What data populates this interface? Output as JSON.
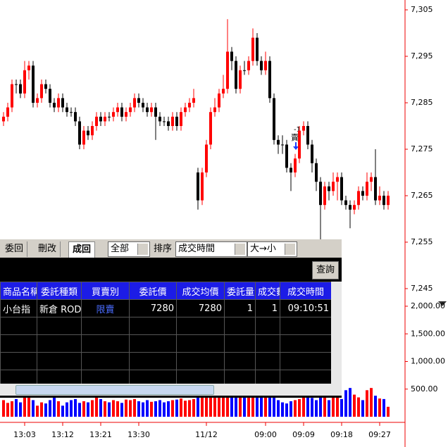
{
  "chart_data": {
    "type": "candlestick",
    "categories": [
      null,
      null,
      null,
      null,
      null,
      "13:03",
      null,
      null,
      null,
      null,
      null,
      null,
      null,
      null,
      "13:12",
      null,
      null,
      null,
      null,
      null,
      null,
      null,
      null,
      "13:21",
      null,
      null,
      null,
      null,
      null,
      null,
      null,
      null,
      "13:30",
      null,
      null,
      null,
      null,
      null,
      null,
      null,
      null,
      null,
      null,
      null,
      null,
      null,
      null,
      null,
      "11/12",
      null,
      null,
      null,
      null,
      null,
      null,
      null,
      null,
      null,
      null,
      null,
      null,
      null,
      "09:00",
      null,
      null,
      null,
      null,
      null,
      null,
      null,
      null,
      "09:09",
      null,
      null,
      null,
      null,
      null,
      null,
      null,
      null,
      "09:18",
      null,
      null,
      null,
      null,
      null,
      null,
      null,
      null,
      "09:27",
      null,
      null
    ],
    "ohlc": [
      [
        7281,
        7283,
        7280,
        7282
      ],
      [
        7282,
        7285,
        7281,
        7284
      ],
      [
        7284,
        7290,
        7283,
        7289
      ],
      [
        7289,
        7290,
        7287,
        7289
      ],
      [
        7289,
        7290,
        7286,
        7287
      ],
      [
        7287,
        7294,
        7286,
        7292
      ],
      [
        7292,
        7294,
        7290,
        7293
      ],
      [
        7293,
        7294,
        7284,
        7285
      ],
      [
        7285,
        7287,
        7284,
        7286
      ],
      [
        7286,
        7290,
        7285,
        7289
      ],
      [
        7289,
        7290,
        7287,
        7288
      ],
      [
        7288,
        7289,
        7284,
        7285
      ],
      [
        7285,
        7286,
        7283,
        7284
      ],
      [
        7284,
        7287,
        7283,
        7286
      ],
      [
        7286,
        7287,
        7283,
        7284
      ],
      [
        7284,
        7285,
        7282,
        7283
      ],
      [
        7283,
        7284,
        7282,
        7283
      ],
      [
        7283,
        7284,
        7280,
        7281
      ],
      [
        7281,
        7282,
        7275,
        7276
      ],
      [
        7276,
        7280,
        7275,
        7279
      ],
      [
        7279,
        7280,
        7277,
        7278
      ],
      [
        7278,
        7281,
        7277,
        7280
      ],
      [
        7280,
        7283,
        7279,
        7282
      ],
      [
        7282,
        7283,
        7280,
        7281
      ],
      [
        7281,
        7283,
        7280,
        7282
      ],
      [
        7282,
        7283,
        7281,
        7282
      ],
      [
        7282,
        7284,
        7281,
        7283
      ],
      [
        7283,
        7285,
        7282,
        7284
      ],
      [
        7284,
        7285,
        7281,
        7282
      ],
      [
        7282,
        7284,
        7281,
        7283
      ],
      [
        7283,
        7285,
        7282,
        7284
      ],
      [
        7284,
        7287,
        7283,
        7286
      ],
      [
        7286,
        7287,
        7284,
        7285
      ],
      [
        7285,
        7286,
        7283,
        7284
      ],
      [
        7284,
        7285,
        7282,
        7283
      ],
      [
        7283,
        7285,
        7282,
        7284
      ],
      [
        7284,
        7285,
        7277,
        7282
      ],
      [
        7282,
        7283,
        7280,
        7281
      ],
      [
        7281,
        7282,
        7280,
        7281
      ],
      [
        7281,
        7282,
        7279,
        7280
      ],
      [
        7280,
        7283,
        7279,
        7282
      ],
      [
        7282,
        7283,
        7279,
        7280
      ],
      [
        7280,
        7284,
        7279,
        7283
      ],
      [
        7283,
        7285,
        7282,
        7284
      ],
      [
        7284,
        7286,
        7283,
        7285
      ],
      [
        7285,
        7288,
        7284,
        7286
      ],
      [
        7270,
        7271,
        7262,
        7264
      ],
      [
        7264,
        7271,
        7263,
        7270
      ],
      [
        7270,
        7277,
        7269,
        7276
      ],
      [
        7276,
        7284,
        7275,
        7283
      ],
      [
        7283,
        7286,
        7282,
        7284
      ],
      [
        7284,
        7288,
        7283,
        7287
      ],
      [
        7287,
        7291,
        7286,
        7288
      ],
      [
        7288,
        7303,
        7287,
        7296
      ],
      [
        7296,
        7297,
        7292,
        7294
      ],
      [
        7294,
        7295,
        7287,
        7288
      ],
      [
        7288,
        7293,
        7287,
        7292
      ],
      [
        7292,
        7294,
        7291,
        7292
      ],
      [
        7292,
        7295,
        7291,
        7294
      ],
      [
        7294,
        7301,
        7293,
        7299
      ],
      [
        7299,
        7300,
        7293,
        7294
      ],
      [
        7294,
        7295,
        7291,
        7292
      ],
      [
        7292,
        7296,
        7291,
        7294
      ],
      [
        7294,
        7295,
        7285,
        7286
      ],
      [
        7286,
        7287,
        7276,
        7277
      ],
      [
        7277,
        7278,
        7274,
        7276
      ],
      [
        7276,
        7278,
        7274,
        7276
      ],
      [
        7276,
        7277,
        7270,
        7271
      ],
      [
        7271,
        7272,
        7266,
        7270
      ],
      [
        7270,
        7274,
        7269,
        7273
      ],
      [
        7273,
        7280,
        7272,
        7279
      ],
      [
        7279,
        7281,
        7278,
        7280
      ],
      [
        7280,
        7281,
        7275,
        7276
      ],
      [
        7276,
        7277,
        7270,
        7272
      ],
      [
        7272,
        7273,
        7266,
        7268
      ],
      [
        7268,
        7269,
        7255,
        7263
      ],
      [
        7263,
        7268,
        7262,
        7267
      ],
      [
        7267,
        7268,
        7264,
        7266
      ],
      [
        7266,
        7270,
        7265,
        7268
      ],
      [
        7268,
        7270,
        7264,
        7269
      ],
      [
        7269,
        7270,
        7263,
        7264
      ],
      [
        7264,
        7265,
        7262,
        7263
      ],
      [
        7263,
        7264,
        7258,
        7262
      ],
      [
        7262,
        7264,
        7261,
        7263
      ],
      [
        7263,
        7267,
        7262,
        7266
      ],
      [
        7266,
        7267,
        7264,
        7265
      ],
      [
        7265,
        7270,
        7264,
        7268
      ],
      [
        7268,
        7270,
        7266,
        7269
      ],
      [
        7269,
        7275,
        7263,
        7264
      ],
      [
        7264,
        7267,
        7263,
        7265
      ],
      [
        7265,
        7266,
        7262,
        7263
      ],
      [
        7263,
        7266,
        7262,
        7265
      ]
    ],
    "volumes": [
      300,
      250,
      280,
      320,
      260,
      350,
      380,
      300,
      200,
      260,
      240,
      300,
      350,
      280,
      200,
      260,
      300,
      320,
      250,
      280,
      260,
      300,
      350,
      320,
      280,
      260,
      300,
      280,
      250,
      310,
      300,
      320,
      280,
      260,
      300,
      270,
      280,
      300,
      260,
      280,
      300,
      310,
      330,
      290,
      300,
      320,
      500,
      400,
      380,
      420,
      450,
      500,
      480,
      460,
      440,
      420,
      400,
      380,
      450,
      480,
      460,
      420,
      350,
      400,
      380,
      300,
      260,
      240,
      280,
      300,
      320,
      350,
      420,
      340,
      300,
      400,
      380,
      300,
      360,
      350,
      320,
      480,
      520,
      400,
      350,
      300,
      480,
      520,
      380,
      330,
      320,
      180
    ],
    "up_color": "#ff0000",
    "down_color": "#000000",
    "volume_up_color": "#ff0000",
    "volume_down_color": "#0000ff",
    "ylim": [
      7245,
      7305
    ],
    "yticks": [
      {
        "value": 7245,
        "label": "7,245"
      },
      {
        "value": 7255,
        "label": "7,255"
      },
      {
        "value": 7265,
        "label": "7,265"
      },
      {
        "value": 7275,
        "label": "7,275"
      },
      {
        "value": 7285,
        "label": "7,285"
      },
      {
        "value": 7295,
        "label": "7,295"
      },
      {
        "value": 7305,
        "label": "7,305"
      }
    ],
    "y2lim": [
      0,
      2000
    ],
    "y2ticks": [
      {
        "value": 500,
        "label": "500.00"
      },
      {
        "value": 1000,
        "label": "1,000.00"
      },
      {
        "value": 1500,
        "label": "1,500.00"
      },
      {
        "value": 2000,
        "label": "2,000.00"
      }
    ],
    "annotation": {
      "quantity": "-1",
      "side": "賣"
    }
  },
  "panel": {
    "tabs": [
      "委回",
      "刪改",
      "成回"
    ],
    "filter": "全部",
    "sort_label": "排序",
    "sort_field": "成交時間",
    "sort_order": "大→小",
    "query_button": "查詢",
    "table": {
      "headers": [
        "商品名稱",
        "委託種類",
        "買賣別",
        "委託價",
        "成交均價",
        "委託量",
        "成交數",
        "成交時間"
      ],
      "rows": [
        [
          "小台指",
          "新倉 ROD",
          "限賣",
          "7280",
          "7280",
          "1",
          "1",
          "09:10:51"
        ]
      ]
    }
  }
}
